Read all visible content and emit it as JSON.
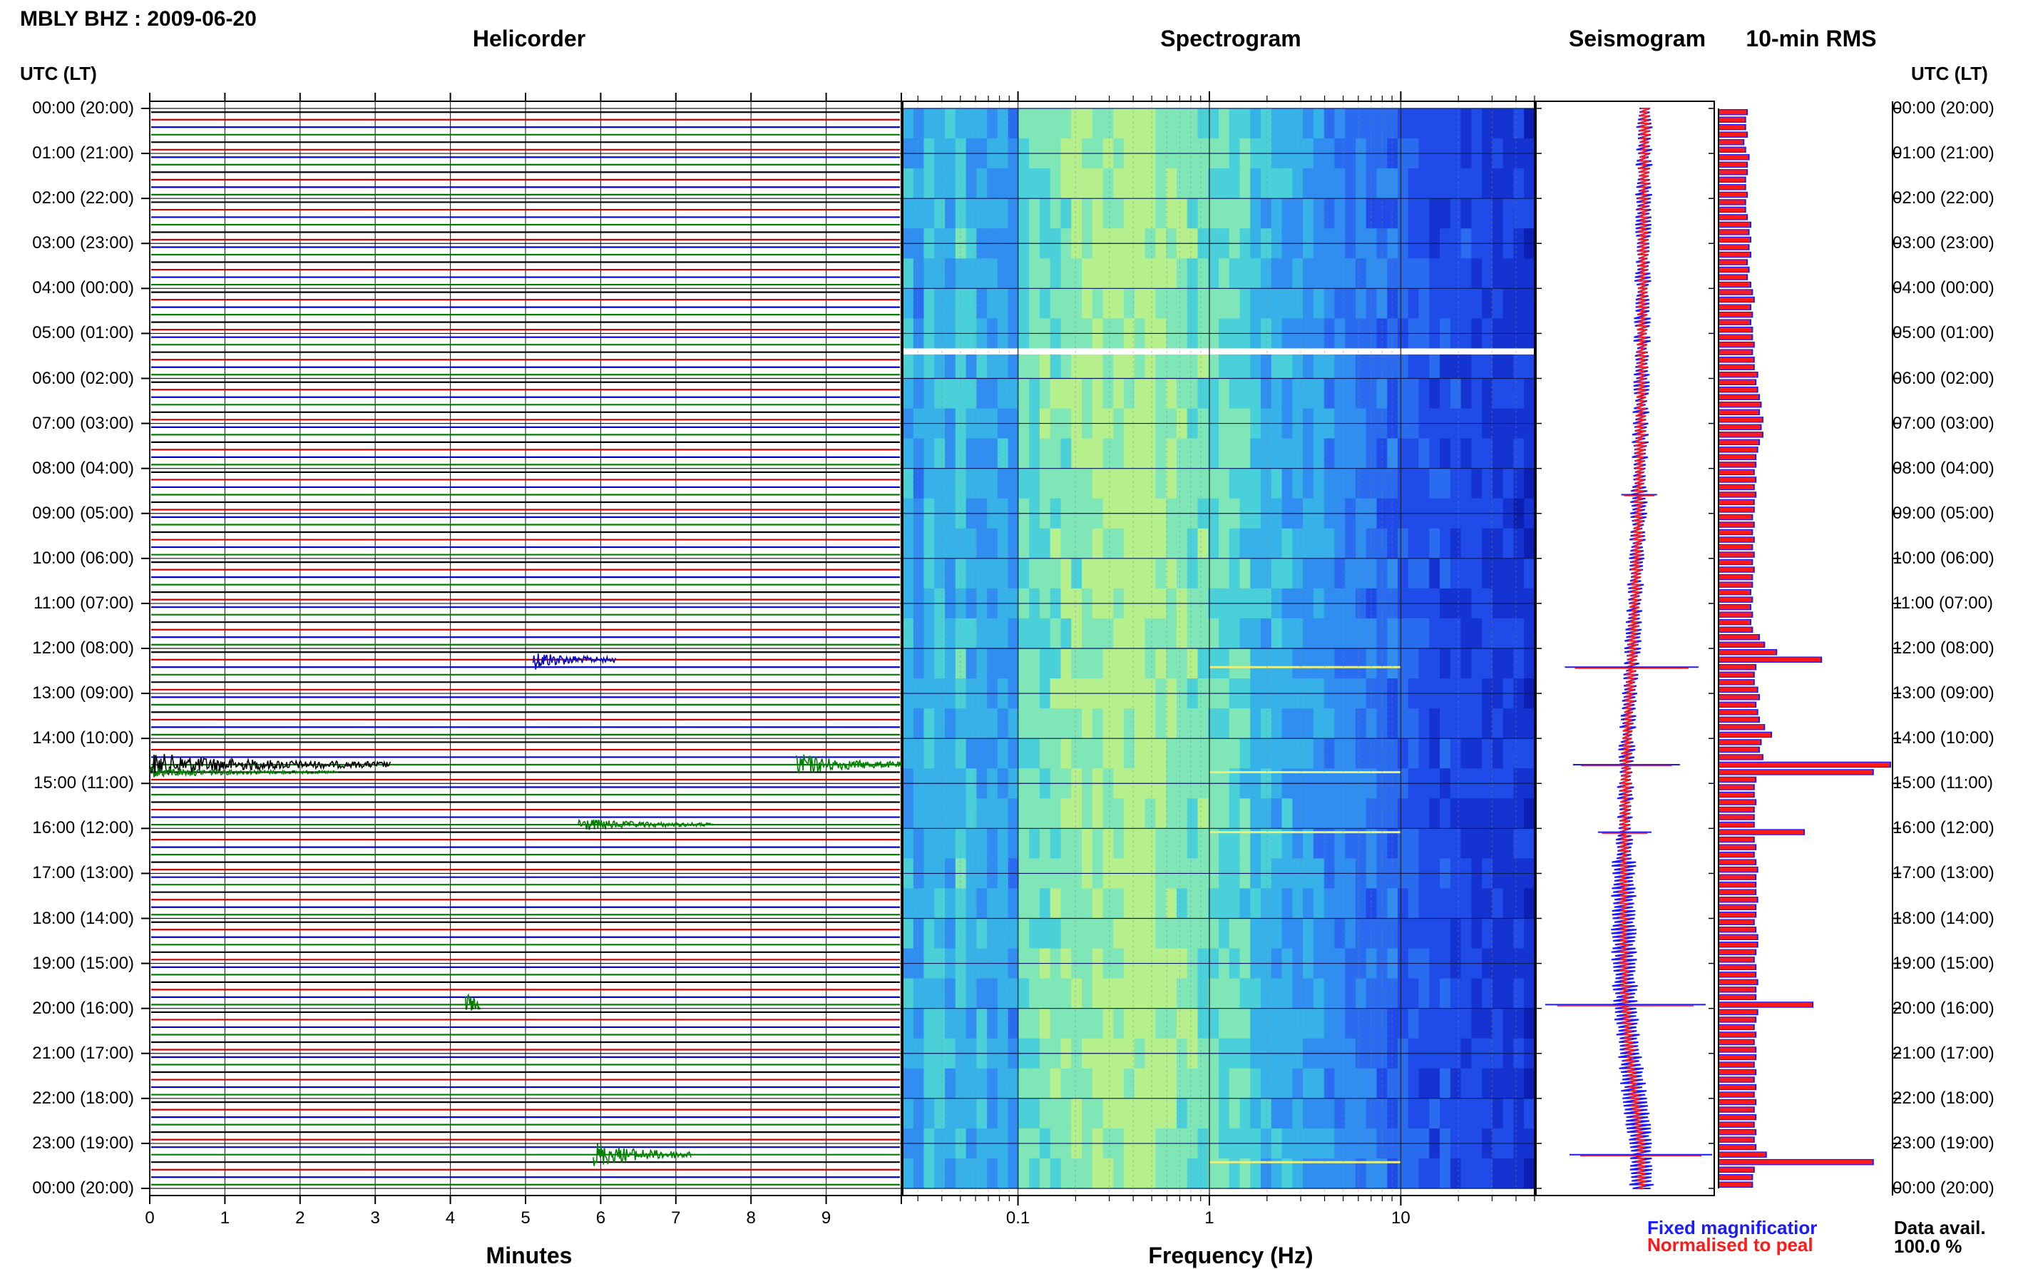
{
  "header": {
    "title": "MBLY BHZ : 2009-06-20"
  },
  "panels": {
    "helicorder": "Helicorder",
    "spectrogram": "Spectrogram",
    "seismogram": "Seismogram",
    "rms": "10-min RMS"
  },
  "axes": {
    "time_header_left": "UTC (LT)",
    "time_header_right": "UTC (LT)",
    "minutes_label": "Minutes",
    "frequency_label": "Frequency (Hz)"
  },
  "legend": {
    "fixed": "Fixed magnificatior",
    "normalised": "Normalised to peal",
    "availability_label": "Data avail.",
    "availability_value": "100.0 %"
  },
  "colors": {
    "fixed_magnification": "#1a1aff",
    "normalised": "#ff1a1a",
    "trace_cycle": [
      "#000000",
      "#cc0000",
      "#0000cc",
      "#008000"
    ]
  },
  "chart_data": [
    {
      "type": "line",
      "title": "Helicorder",
      "xlabel": "Minutes",
      "ylabel": "UTC (LT)",
      "x_ticks": [
        "0",
        "1",
        "2",
        "3",
        "4",
        "5",
        "6",
        "7",
        "8",
        "9"
      ],
      "xlim": [
        0,
        10
      ],
      "time_labels": [
        "00:00 (20:00)",
        "01:00 (21:00)",
        "02:00 (22:00)",
        "03:00 (23:00)",
        "04:00 (00:00)",
        "05:00 (01:00)",
        "06:00 (02:00)",
        "07:00 (03:00)",
        "08:00 (04:00)",
        "09:00 (05:00)",
        "10:00 (06:00)",
        "11:00 (07:00)",
        "12:00 (08:00)",
        "13:00 (09:00)",
        "14:00 (10:00)",
        "15:00 (11:00)",
        "16:00 (12:00)",
        "17:00 (13:00)",
        "18:00 (14:00)",
        "19:00 (15:00)",
        "20:00 (16:00)",
        "21:00 (17:00)",
        "22:00 (18:00)",
        "23:00 (19:00)",
        "00:00 (20:00)"
      ],
      "traces_per_hour": 6,
      "events": [
        {
          "row": 73,
          "start_min": 5.1,
          "end_min": 6.2,
          "amplitude": 3.0,
          "color": "blue"
        },
        {
          "row": 87,
          "start_min": 0.0,
          "end_min": 3.2,
          "amplitude": 3.5,
          "color": "black"
        },
        {
          "row": 87,
          "start_min": 8.6,
          "end_min": 10.0,
          "amplitude": 3.5,
          "color": "green"
        },
        {
          "row": 88,
          "start_min": 0.0,
          "end_min": 2.5,
          "amplitude": 1.6,
          "color": "green"
        },
        {
          "row": 95,
          "start_min": 5.7,
          "end_min": 7.5,
          "amplitude": 2.0,
          "color": "green"
        },
        {
          "row": 119,
          "start_min": 4.2,
          "end_min": 4.4,
          "amplitude": 5.0,
          "color": "green"
        },
        {
          "row": 139,
          "start_min": 5.9,
          "end_min": 7.2,
          "amplitude": 4.0,
          "color": "green"
        }
      ]
    },
    {
      "type": "heatmap",
      "title": "Spectrogram",
      "xlabel": "Frequency (Hz)",
      "x_scale": "log",
      "xlim": [
        0.025,
        50
      ],
      "x_ticks": [
        "0.1",
        "1",
        "10"
      ],
      "rows": 144,
      "gap_row": 32,
      "tonal_lines": [
        {
          "row": 74,
          "f_min": 1.0,
          "f_max": 10.0
        },
        {
          "row": 88,
          "f_min": 1.0,
          "f_max": 10.0
        },
        {
          "row": 96,
          "f_min": 1.0,
          "f_max": 10.0
        },
        {
          "row": 140,
          "f_min": 1.0,
          "f_max": 10.0
        }
      ]
    },
    {
      "type": "line",
      "title": "Seismogram",
      "series": [
        {
          "name": "Fixed magnificatior",
          "color": "#1a1aff"
        },
        {
          "name": "Normalised to peal",
          "color": "#ff1a1a"
        }
      ],
      "drift": [
        0.82,
        0.81,
        0.8,
        0.79,
        0.78,
        0.77,
        0.76,
        0.74,
        0.72,
        0.7,
        0.66,
        0.62,
        0.58,
        0.52,
        0.47,
        0.44,
        0.42,
        0.4,
        0.4,
        0.41,
        0.44,
        0.52,
        0.62,
        0.74,
        0.76
      ],
      "spikes": [
        {
          "row": 74,
          "width": 0.75
        },
        {
          "row": 87,
          "width": 0.6
        },
        {
          "row": 96,
          "width": 0.3
        },
        {
          "row": 119,
          "width": 0.9
        },
        {
          "row": 139,
          "width": 0.8
        },
        {
          "row": 51,
          "width": 0.2
        }
      ]
    },
    {
      "type": "bar",
      "title": "10-min RMS",
      "series": [
        {
          "name": "Fixed magnificatior",
          "color": "#1a1aff"
        },
        {
          "name": "Normalised to peal",
          "color": "#ff1a1a"
        }
      ],
      "values": [
        0.17,
        0.16,
        0.16,
        0.17,
        0.15,
        0.16,
        0.18,
        0.17,
        0.17,
        0.16,
        0.16,
        0.17,
        0.16,
        0.16,
        0.17,
        0.19,
        0.18,
        0.19,
        0.18,
        0.19,
        0.17,
        0.18,
        0.17,
        0.19,
        0.2,
        0.21,
        0.19,
        0.2,
        0.19,
        0.2,
        0.2,
        0.21,
        0.2,
        0.21,
        0.21,
        0.23,
        0.22,
        0.23,
        0.24,
        0.25,
        0.24,
        0.26,
        0.25,
        0.26,
        0.24,
        0.23,
        0.22,
        0.22,
        0.21,
        0.22,
        0.21,
        0.22,
        0.21,
        0.21,
        0.2,
        0.21,
        0.2,
        0.21,
        0.2,
        0.21,
        0.2,
        0.21,
        0.2,
        0.2,
        0.19,
        0.2,
        0.19,
        0.2,
        0.19,
        0.2,
        0.24,
        0.27,
        0.34,
        0.6,
        0.22,
        0.21,
        0.21,
        0.23,
        0.24,
        0.22,
        0.23,
        0.24,
        0.27,
        0.31,
        0.25,
        0.24,
        0.26,
        1.0,
        0.9,
        0.22,
        0.21,
        0.21,
        0.22,
        0.21,
        0.21,
        0.21,
        0.5,
        0.21,
        0.22,
        0.21,
        0.22,
        0.23,
        0.22,
        0.22,
        0.22,
        0.23,
        0.22,
        0.22,
        0.21,
        0.22,
        0.23,
        0.23,
        0.22,
        0.21,
        0.22,
        0.22,
        0.23,
        0.22,
        0.22,
        0.55,
        0.23,
        0.22,
        0.21,
        0.22,
        0.21,
        0.22,
        0.22,
        0.21,
        0.22,
        0.21,
        0.22,
        0.21,
        0.22,
        0.21,
        0.22,
        0.21,
        0.22,
        0.21,
        0.22,
        0.28,
        0.9,
        0.21,
        0.2,
        0.2
      ]
    }
  ]
}
